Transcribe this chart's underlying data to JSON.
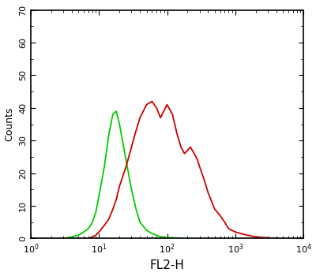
{
  "xlabel": "FL2-H",
  "ylabel": "Counts",
  "xlim": [
    1,
    10000
  ],
  "ylim": [
    0,
    70
  ],
  "yticks": [
    0,
    10,
    20,
    30,
    40,
    50,
    60,
    70
  ],
  "background_color": "#ffffff",
  "plot_bg_color": "#ffffff",
  "green_color": "#00cc00",
  "red_color": "#cc0000",
  "green_curve": {
    "x": [
      1,
      1.5,
      2,
      3,
      4,
      5,
      6,
      7,
      8,
      9,
      10,
      12,
      14,
      16,
      18,
      20,
      25,
      30,
      35,
      40,
      50,
      60,
      70,
      80,
      100,
      130,
      160,
      200,
      300,
      500,
      1000,
      3000,
      10000
    ],
    "y": [
      0,
      0,
      0,
      0,
      0.5,
      1,
      2,
      3,
      5,
      8,
      13,
      22,
      32,
      38,
      39,
      35,
      24,
      15,
      9,
      5,
      2.5,
      1.5,
      1,
      0.5,
      0.3,
      0.2,
      0.1,
      0,
      0,
      0,
      0,
      0,
      0
    ]
  },
  "red_curve": {
    "x": [
      1,
      2,
      3,
      4,
      5,
      6,
      7,
      8,
      9,
      10,
      12,
      14,
      16,
      18,
      20,
      25,
      30,
      35,
      40,
      50,
      60,
      70,
      80,
      100,
      120,
      140,
      160,
      180,
      200,
      220,
      250,
      280,
      300,
      350,
      400,
      500,
      600,
      700,
      800,
      1000,
      1500,
      2000,
      3000,
      5000,
      10000
    ],
    "y": [
      0,
      0,
      0,
      0,
      0,
      0,
      0,
      0.5,
      1,
      2,
      4,
      6,
      9,
      12,
      16,
      22,
      28,
      33,
      37,
      41,
      42,
      40,
      37,
      41,
      38,
      32,
      28,
      26,
      27,
      28,
      26,
      24,
      22,
      18,
      14,
      9,
      7,
      5,
      3,
      2,
      1,
      0.5,
      0.2,
      0,
      0
    ]
  },
  "xlabel_fontsize": 11,
  "ylabel_fontsize": 9,
  "tick_fontsize": 8,
  "linewidth": 1.3,
  "figsize": [
    4.0,
    3.5
  ],
  "dpi": 100
}
